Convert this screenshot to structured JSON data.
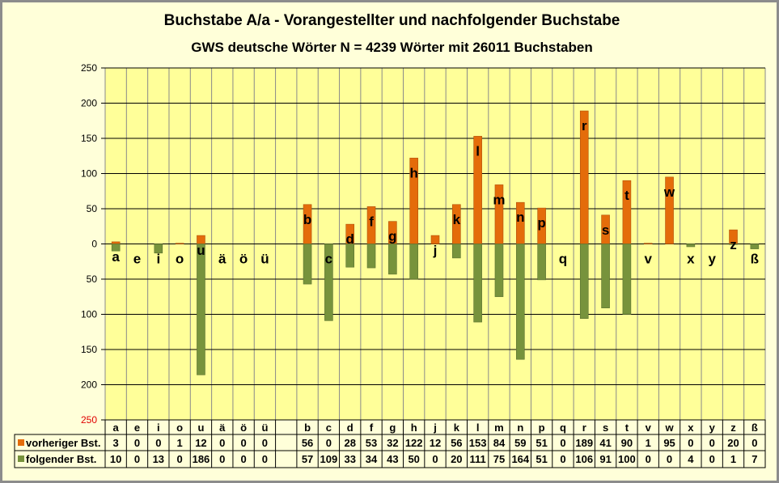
{
  "chart_data": {
    "type": "bar",
    "title": "Buchstabe A/a - Vorangestellter  und nachfolgender Buchstabe",
    "subtitle": "GWS deutsche Wörter N = 4239 Wörter mit 26011 Buchstaben",
    "categories": [
      "a",
      "e",
      "i",
      "o",
      "u",
      "ä",
      "ö",
      "ü",
      "",
      "b",
      "c",
      "d",
      "f",
      "g",
      "h",
      "j",
      "k",
      "l",
      "m",
      "n",
      "p",
      "q",
      "r",
      "s",
      "t",
      "v",
      "w",
      "x",
      "y",
      "z",
      "ß"
    ],
    "series": [
      {
        "name": "vorheriger Bst.",
        "color": "#E46C0A",
        "direction": "up",
        "values": [
          3,
          0,
          0,
          1,
          12,
          0,
          0,
          0,
          null,
          56,
          0,
          28,
          53,
          32,
          122,
          12,
          56,
          153,
          84,
          59,
          51,
          0,
          189,
          41,
          90,
          1,
          95,
          0,
          0,
          20,
          0
        ]
      },
      {
        "name": "folgender Bst.",
        "color": "#77933C",
        "direction": "down",
        "values": [
          10,
          0,
          13,
          0,
          186,
          0,
          0,
          0,
          null,
          57,
          109,
          33,
          34,
          43,
          50,
          0,
          20,
          111,
          75,
          164,
          51,
          0,
          106,
          91,
          100,
          0,
          0,
          4,
          0,
          1,
          7
        ]
      }
    ],
    "yticks": [
      "250",
      "200",
      "150",
      "100",
      "50",
      "0",
      "50",
      "100",
      "150",
      "200",
      "250"
    ],
    "ylim": [
      -250,
      250
    ],
    "grid": true,
    "legend": "data-table"
  }
}
